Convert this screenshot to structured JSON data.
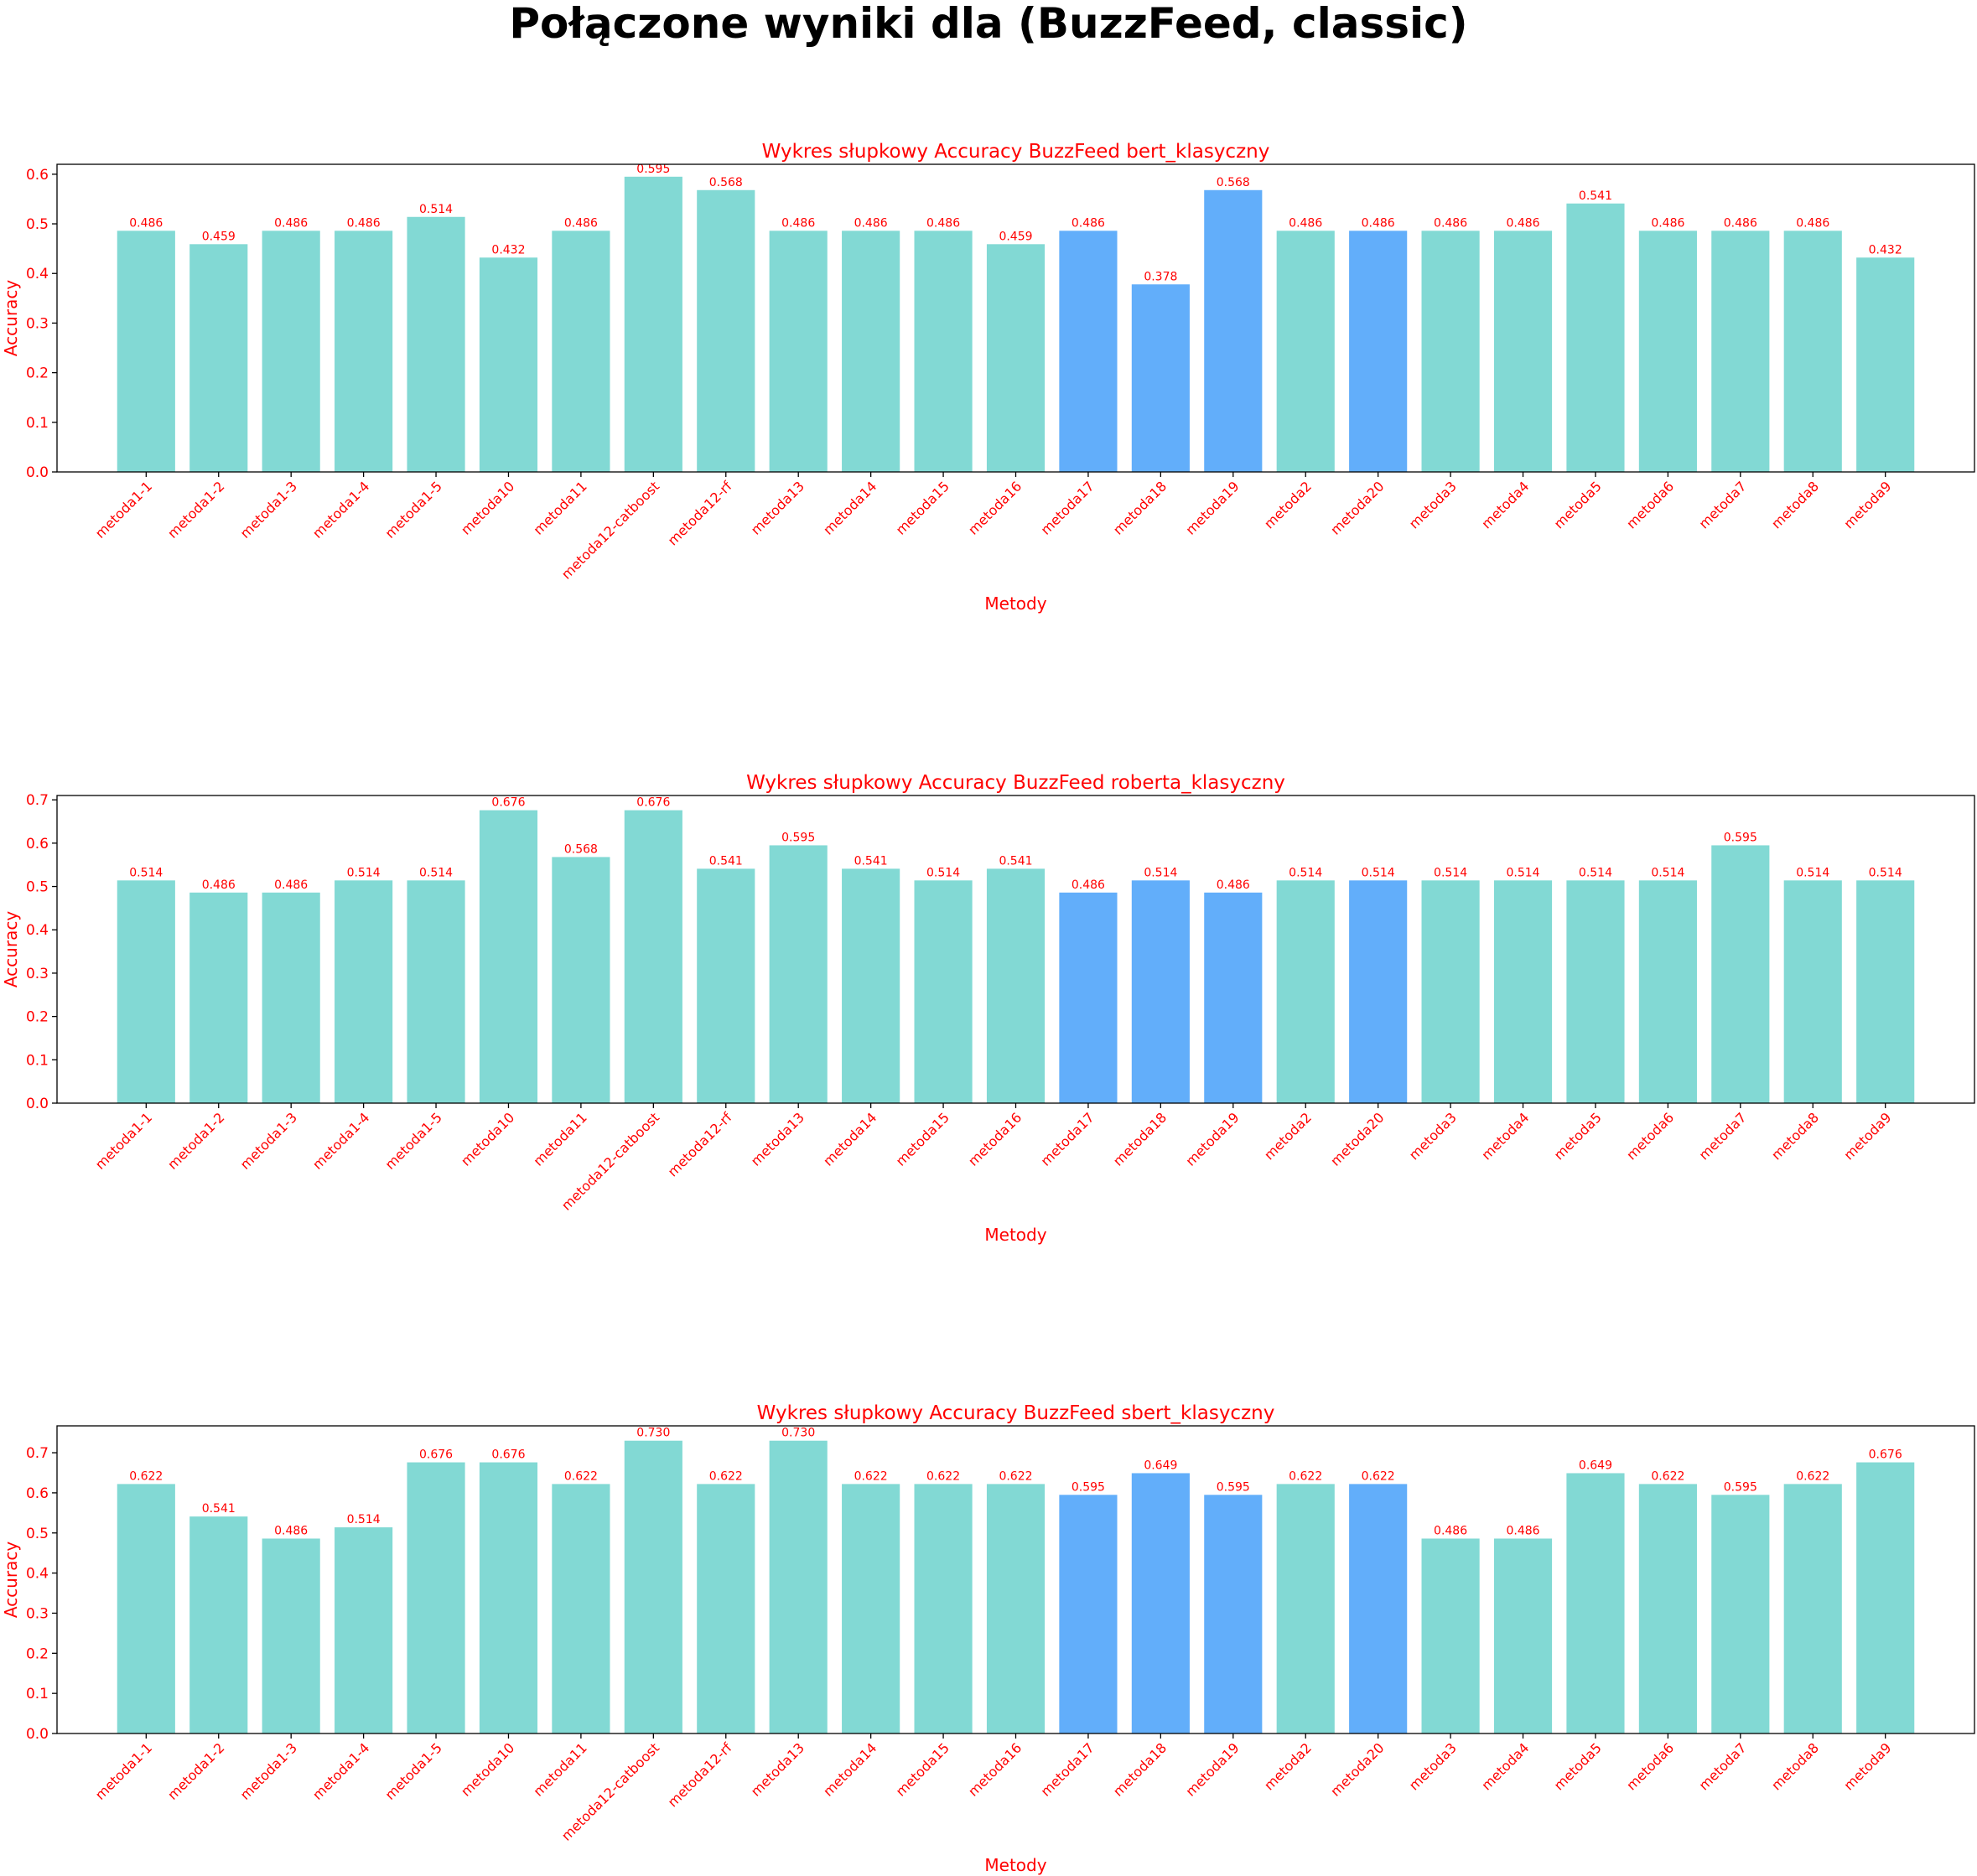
{
  "figure_title": "Połączone wyniki dla (BuzzFeed, classic)",
  "colors": {
    "bar_default": "#82d9d4",
    "bar_highlight": "#62aefa",
    "text": "#ff0000",
    "axis": "#000000"
  },
  "chart_data": [
    {
      "type": "bar",
      "title": "Wykres słupkowy Accuracy BuzzFeed bert_klasyczny",
      "xlabel": "Metody",
      "ylabel": "Accuracy",
      "ylim": [
        0,
        0.62
      ],
      "yticks": [
        "0.0",
        "0.1",
        "0.2",
        "0.3",
        "0.4",
        "0.5",
        "0.6"
      ],
      "categories": [
        "metoda1-1",
        "metoda1-2",
        "metoda1-3",
        "metoda1-4",
        "metoda1-5",
        "metoda10",
        "metoda11",
        "metoda12-catboost",
        "metoda12-rf",
        "metoda13",
        "metoda14",
        "metoda15",
        "metoda16",
        "metoda17",
        "metoda18",
        "metoda19",
        "metoda2",
        "metoda20",
        "metoda3",
        "metoda4",
        "metoda5",
        "metoda6",
        "metoda7",
        "metoda8",
        "metoda9"
      ],
      "values": [
        0.486,
        0.459,
        0.486,
        0.486,
        0.514,
        0.432,
        0.486,
        0.595,
        0.568,
        0.486,
        0.486,
        0.486,
        0.459,
        0.486,
        0.378,
        0.568,
        0.486,
        0.486,
        0.486,
        0.486,
        0.541,
        0.486,
        0.486,
        0.486,
        0.432
      ],
      "labels": [
        "0.486",
        "0.459",
        "0.486",
        "0.486",
        "0.514",
        "0.432",
        "0.486",
        "0.595",
        "0.568",
        "0.486",
        "0.486",
        "0.486",
        "0.459",
        "0.486",
        "0.378",
        "0.568",
        "0.486",
        "0.486",
        "0.486",
        "0.486",
        "0.541",
        "0.486",
        "0.486",
        "0.486",
        "0.432"
      ],
      "highlighted": [
        "metoda17",
        "metoda18",
        "metoda19",
        "metoda20"
      ],
      "grid": false,
      "legend": "none"
    },
    {
      "type": "bar",
      "title": "Wykres słupkowy Accuracy BuzzFeed roberta_klasyczny",
      "xlabel": "Metody",
      "ylabel": "Accuracy",
      "ylim": [
        0,
        0.71
      ],
      "yticks": [
        "0.0",
        "0.1",
        "0.2",
        "0.3",
        "0.4",
        "0.5",
        "0.6",
        "0.7"
      ],
      "categories": [
        "metoda1-1",
        "metoda1-2",
        "metoda1-3",
        "metoda1-4",
        "metoda1-5",
        "metoda10",
        "metoda11",
        "metoda12-catboost",
        "metoda12-rf",
        "metoda13",
        "metoda14",
        "metoda15",
        "metoda16",
        "metoda17",
        "metoda18",
        "metoda19",
        "metoda2",
        "metoda20",
        "metoda3",
        "metoda4",
        "metoda5",
        "metoda6",
        "metoda7",
        "metoda8",
        "metoda9"
      ],
      "values": [
        0.514,
        0.486,
        0.486,
        0.514,
        0.514,
        0.676,
        0.568,
        0.676,
        0.541,
        0.595,
        0.541,
        0.514,
        0.541,
        0.486,
        0.514,
        0.486,
        0.514,
        0.514,
        0.514,
        0.514,
        0.514,
        0.514,
        0.595,
        0.514,
        0.514
      ],
      "labels": [
        "0.514",
        "0.486",
        "0.486",
        "0.514",
        "0.514",
        "0.676",
        "0.568",
        "0.676",
        "0.541",
        "0.595",
        "0.541",
        "0.514",
        "0.541",
        "0.486",
        "0.514",
        "0.486",
        "0.514",
        "0.514",
        "0.514",
        "0.514",
        "0.514",
        "0.514",
        "0.595",
        "0.514",
        "0.514"
      ],
      "highlighted": [
        "metoda17",
        "metoda18",
        "metoda19",
        "metoda20"
      ],
      "grid": false,
      "legend": "none"
    },
    {
      "type": "bar",
      "title": "Wykres słupkowy Accuracy BuzzFeed sbert_klasyczny",
      "xlabel": "Metody",
      "ylabel": "Accuracy",
      "ylim": [
        0,
        0.767
      ],
      "yticks": [
        "0.0",
        "0.1",
        "0.2",
        "0.3",
        "0.4",
        "0.5",
        "0.6",
        "0.7"
      ],
      "categories": [
        "metoda1-1",
        "metoda1-2",
        "metoda1-3",
        "metoda1-4",
        "metoda1-5",
        "metoda10",
        "metoda11",
        "metoda12-catboost",
        "metoda12-rf",
        "metoda13",
        "metoda14",
        "metoda15",
        "metoda16",
        "metoda17",
        "metoda18",
        "metoda19",
        "metoda2",
        "metoda20",
        "metoda3",
        "metoda4",
        "metoda5",
        "metoda6",
        "metoda7",
        "metoda8",
        "metoda9"
      ],
      "values": [
        0.622,
        0.541,
        0.486,
        0.514,
        0.676,
        0.676,
        0.622,
        0.73,
        0.622,
        0.73,
        0.622,
        0.622,
        0.622,
        0.595,
        0.649,
        0.595,
        0.622,
        0.622,
        0.486,
        0.486,
        0.649,
        0.622,
        0.595,
        0.622,
        0.676
      ],
      "labels": [
        "0.622",
        "0.541",
        "0.486",
        "0.514",
        "0.676",
        "0.676",
        "0.622",
        "0.730",
        "0.622",
        "0.730",
        "0.622",
        "0.622",
        "0.622",
        "0.595",
        "0.649",
        "0.595",
        "0.622",
        "0.622",
        "0.486",
        "0.486",
        "0.649",
        "0.622",
        "0.595",
        "0.622",
        "0.676"
      ],
      "highlighted": [
        "metoda17",
        "metoda18",
        "metoda19",
        "metoda20"
      ],
      "grid": false,
      "legend": "none"
    }
  ]
}
